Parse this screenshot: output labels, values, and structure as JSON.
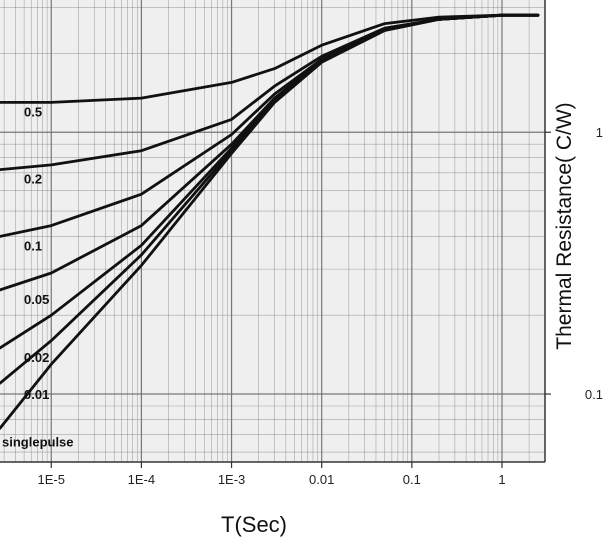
{
  "chart_data": {
    "type": "line",
    "title": "",
    "xlabel": "T(Sec)",
    "ylabel": "Thermal Resistance( C/W)",
    "x_scale": "log",
    "xlim": [
      2.7e-06,
      3
    ],
    "x_ticks": [
      {
        "value": 1e-05,
        "label": "1E-5"
      },
      {
        "value": 0.0001,
        "label": "1E-4"
      },
      {
        "value": 0.001,
        "label": "1E-3"
      },
      {
        "value": 0.01,
        "label": "0.01"
      },
      {
        "value": 0.1,
        "label": "0.1"
      },
      {
        "value": 1,
        "label": "1"
      }
    ],
    "y_scale": "log",
    "ylim": [
      0.055,
      3.2
    ],
    "y_ticks": [
      {
        "value": 1,
        "label": "1"
      },
      {
        "value": 0.1,
        "label": "0.1"
      }
    ],
    "grid": true,
    "legend": "none",
    "curve_labels": [
      "0.5",
      "0.2",
      "0.1",
      "0.05",
      "0.02",
      "0.01",
      "singlepulse"
    ],
    "series": [
      {
        "name": "0.5",
        "x": [
          2.7e-06,
          1e-05,
          0.0001,
          0.001,
          0.003,
          0.01,
          0.05,
          0.2,
          1,
          2.5
        ],
        "y": [
          1.3,
          1.3,
          1.35,
          1.55,
          1.75,
          2.15,
          2.6,
          2.75,
          2.8,
          2.8
        ]
      },
      {
        "name": "0.2",
        "x": [
          2.7e-06,
          1e-05,
          0.0001,
          0.001,
          0.003,
          0.01,
          0.05,
          0.2,
          1,
          2.5
        ],
        "y": [
          0.72,
          0.75,
          0.85,
          1.12,
          1.5,
          1.95,
          2.5,
          2.7,
          2.8,
          2.8
        ]
      },
      {
        "name": "0.1",
        "x": [
          2.7e-06,
          1e-05,
          0.0001,
          0.001,
          0.003,
          0.01,
          0.05,
          0.2,
          1,
          2.5
        ],
        "y": [
          0.4,
          0.44,
          0.58,
          0.98,
          1.4,
          1.9,
          2.48,
          2.7,
          2.8,
          2.8
        ]
      },
      {
        "name": "0.05",
        "x": [
          2.7e-06,
          1e-05,
          0.0001,
          0.001,
          0.003,
          0.01,
          0.05,
          0.2,
          1,
          2.5
        ],
        "y": [
          0.25,
          0.29,
          0.44,
          0.9,
          1.35,
          1.88,
          2.46,
          2.7,
          2.8,
          2.8
        ]
      },
      {
        "name": "0.02",
        "x": [
          2.7e-06,
          1e-05,
          0.0001,
          0.001,
          0.003,
          0.01,
          0.05,
          0.2,
          1,
          2.5
        ],
        "y": [
          0.15,
          0.2,
          0.37,
          0.87,
          1.33,
          1.87,
          2.45,
          2.7,
          2.8,
          2.8
        ]
      },
      {
        "name": "0.01",
        "x": [
          2.7e-06,
          1e-05,
          0.0001,
          0.001,
          0.003,
          0.01,
          0.05,
          0.2,
          1,
          2.5
        ],
        "y": [
          0.11,
          0.16,
          0.34,
          0.85,
          1.32,
          1.86,
          2.45,
          2.7,
          2.8,
          2.8
        ]
      },
      {
        "name": "singlepulse",
        "x": [
          2.7e-06,
          1e-05,
          0.0001,
          0.001,
          0.003,
          0.01,
          0.05,
          0.2,
          1,
          2.5
        ],
        "y": [
          0.074,
          0.13,
          0.31,
          0.83,
          1.3,
          1.85,
          2.45,
          2.7,
          2.8,
          2.8
        ]
      }
    ],
    "colors": {
      "curve": "#111111",
      "grid": "#6a6a6a",
      "axis": "#333333",
      "accent": "#c0303a"
    }
  }
}
